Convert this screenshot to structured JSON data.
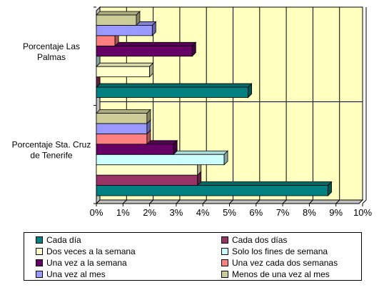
{
  "chart_data": {
    "type": "bar",
    "orientation": "horizontal",
    "three_d": true,
    "categories": [
      "Porcentaje Sta. Cruz de Tenerife",
      "Porcentaje Las Palmas"
    ],
    "series": [
      {
        "name": "Cada día",
        "color": "#008080",
        "values": [
          8.7,
          5.7
        ]
      },
      {
        "name": "Cada dos días",
        "color": "#993366",
        "values": [
          3.8,
          0.0
        ]
      },
      {
        "name": "Dos veces a la semana",
        "color": "#FFFFCC",
        "values": [
          3.8,
          2.0
        ]
      },
      {
        "name": "Solo los fines de semana",
        "color": "#CCFFFF",
        "values": [
          4.8,
          0.0
        ]
      },
      {
        "name": "Una vez a la semana",
        "color": "#660066",
        "values": [
          2.9,
          3.6
        ]
      },
      {
        "name": "Una vez cada dos semanas",
        "color": "#FF8080",
        "values": [
          1.9,
          0.7
        ]
      },
      {
        "name": "Una vez al mes",
        "color": "#9999FF",
        "values": [
          1.9,
          2.1
        ]
      },
      {
        "name": "Menos de una vez al mes",
        "color": "#CCCC99",
        "values": [
          1.9,
          1.5
        ]
      }
    ],
    "xlim": [
      0,
      10
    ],
    "x_ticks": [
      "0%",
      "1%",
      "2%",
      "3%",
      "4%",
      "5%",
      "6%",
      "7%",
      "8%",
      "9%",
      "10%"
    ],
    "grid": true,
    "plot_background": "#FFFFC0",
    "legend_position": "bottom"
  }
}
